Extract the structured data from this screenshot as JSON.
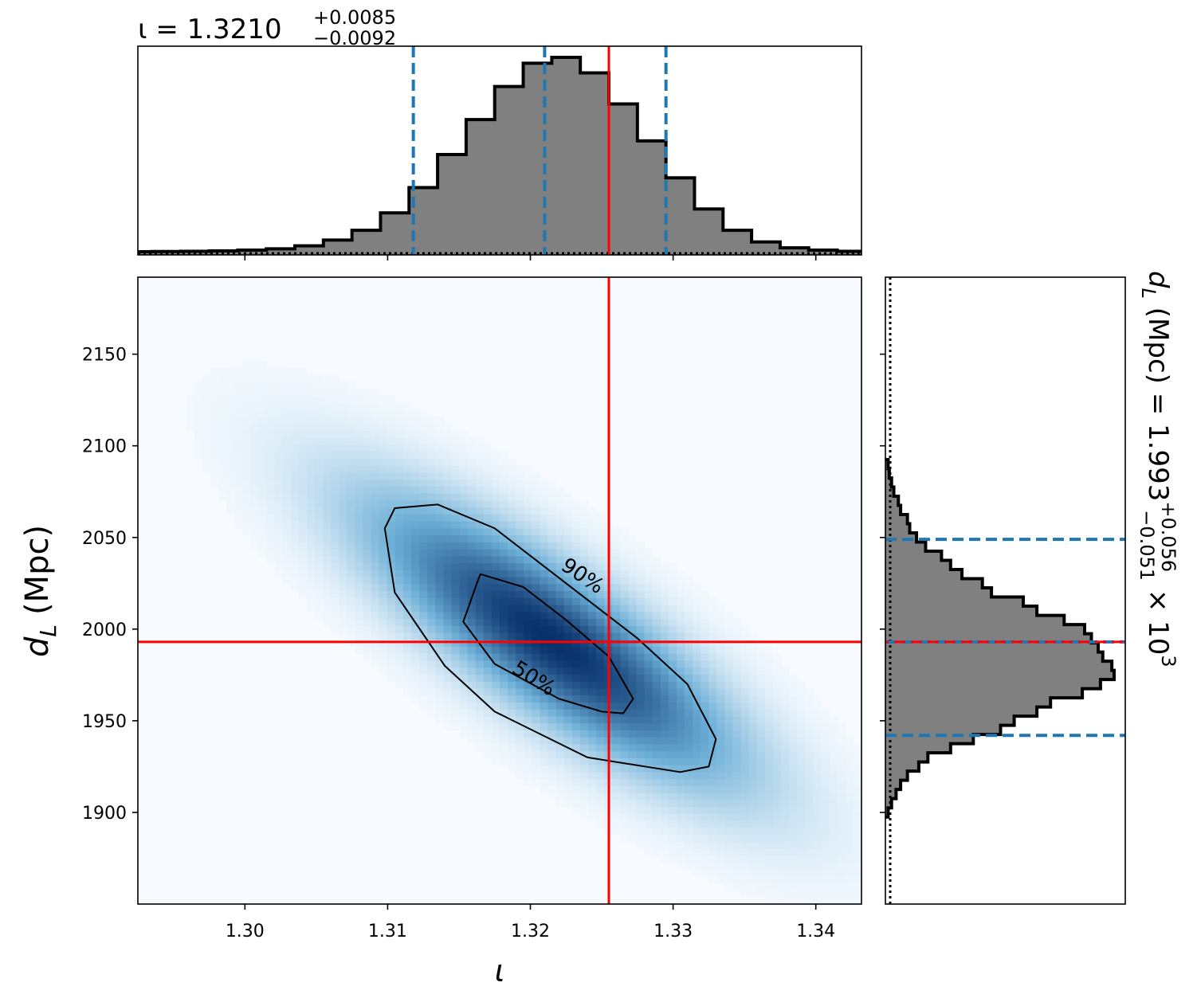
{
  "chart_data": [
    {
      "type": "histogram",
      "panel": "top-marginal",
      "title_symbol": "ι = 1.3210",
      "title_sup": "+0.0085",
      "title_sub": "−0.0092",
      "x": [
        1.2925,
        1.2945,
        1.2965,
        1.2985,
        1.3005,
        1.3025,
        1.3045,
        1.3065,
        1.3085,
        1.3105,
        1.3125,
        1.3145,
        1.3165,
        1.3185,
        1.3205,
        1.3225,
        1.3245,
        1.3265,
        1.3285,
        1.3305,
        1.3325,
        1.3345,
        1.3365,
        1.3385,
        1.3405,
        1.3425
      ],
      "values": [
        0.0,
        0.001,
        0.002,
        0.004,
        0.008,
        0.015,
        0.03,
        0.06,
        0.11,
        0.2,
        0.33,
        0.5,
        0.68,
        0.85,
        0.97,
        1.0,
        0.92,
        0.76,
        0.57,
        0.38,
        0.22,
        0.11,
        0.05,
        0.02,
        0.008,
        0.002
      ],
      "xlim": [
        1.2925,
        1.3432
      ],
      "median": 1.321,
      "lower": 1.3118,
      "upper": 1.3295,
      "truth": 1.3255,
      "colors": {
        "fill": "#808080",
        "edge": "#000000",
        "quantile": "#1f77b4",
        "truth": "#ff0000"
      }
    },
    {
      "type": "heatmap",
      "panel": "joint",
      "xlabel": "ι",
      "ylabel_main": "d",
      "ylabel_sub": "L",
      "ylabel_unit": "(Mpc)",
      "xlim": [
        1.2925,
        1.3432
      ],
      "ylim": [
        1850,
        2192
      ],
      "xticks": [
        "1.30",
        "1.31",
        "1.32",
        "1.33",
        "1.34"
      ],
      "xtick_values": [
        1.3,
        1.31,
        1.32,
        1.33,
        1.34
      ],
      "yticks": [
        "1900",
        "1950",
        "2000",
        "2050",
        "2100",
        "2150"
      ],
      "ytick_values": [
        1900,
        1950,
        2000,
        2050,
        2100,
        2150
      ],
      "density_center": {
        "x": 1.3215,
        "y": 1994
      },
      "contours": [
        {
          "label": "50%",
          "x": [
            1.3165,
            1.3195,
            1.3225,
            1.3255,
            1.3272,
            1.3265,
            1.325,
            1.322,
            1.3175,
            1.3153,
            1.3163
          ],
          "y": [
            2030,
            2023,
            2005,
            1985,
            1962,
            1954,
            1955,
            1962,
            1981,
            2004,
            2026
          ]
        },
        {
          "label": "90%",
          "x": [
            1.3105,
            1.3135,
            1.3175,
            1.3225,
            1.3275,
            1.331,
            1.333,
            1.3325,
            1.3305,
            1.324,
            1.3175,
            1.314,
            1.3105,
            1.3098
          ],
          "y": [
            2066,
            2068,
            2055,
            2025,
            1995,
            1970,
            1940,
            1925,
            1922,
            1930,
            1955,
            1980,
            2020,
            2055
          ]
        }
      ],
      "truth": {
        "x": 1.3255,
        "y": 1993
      },
      "colors": {
        "cmap_low": "#f7fbff",
        "cmap_high": "#08306b",
        "contour": "#000000",
        "truth": "#ff0000"
      }
    },
    {
      "type": "histogram",
      "panel": "right-marginal",
      "orientation": "horizontal",
      "label_main": "d",
      "label_sub": "L",
      "label_rest": " (Mpc) = 1.993",
      "label_sup": "+0.056",
      "label_sub2": "−0.051",
      "label_scale": " × 10",
      "label_exp": "3",
      "y": [
        1900,
        1905,
        1910,
        1915,
        1920,
        1925,
        1930,
        1935,
        1940,
        1945,
        1950,
        1955,
        1960,
        1965,
        1970,
        1975,
        1980,
        1985,
        1990,
        1995,
        2000,
        2005,
        2010,
        2015,
        2020,
        2025,
        2030,
        2035,
        2040,
        2045,
        2050,
        2055,
        2060,
        2065,
        2070,
        2075,
        2080,
        2085,
        2090
      ],
      "values": [
        0.005,
        0.02,
        0.04,
        0.06,
        0.09,
        0.14,
        0.18,
        0.28,
        0.38,
        0.5,
        0.56,
        0.66,
        0.72,
        0.86,
        0.94,
        1.0,
        0.99,
        0.95,
        0.93,
        0.9,
        0.87,
        0.78,
        0.66,
        0.6,
        0.46,
        0.42,
        0.33,
        0.28,
        0.24,
        0.17,
        0.13,
        0.1,
        0.09,
        0.06,
        0.05,
        0.03,
        0.02,
        0.01,
        0.005
      ],
      "ylim": [
        1850,
        2192
      ],
      "median": 1993,
      "lower": 1942,
      "upper": 2049,
      "truth": 1993,
      "colors": {
        "fill": "#808080",
        "edge": "#000000",
        "quantile": "#1f77b4",
        "truth": "#ff0000"
      }
    }
  ]
}
